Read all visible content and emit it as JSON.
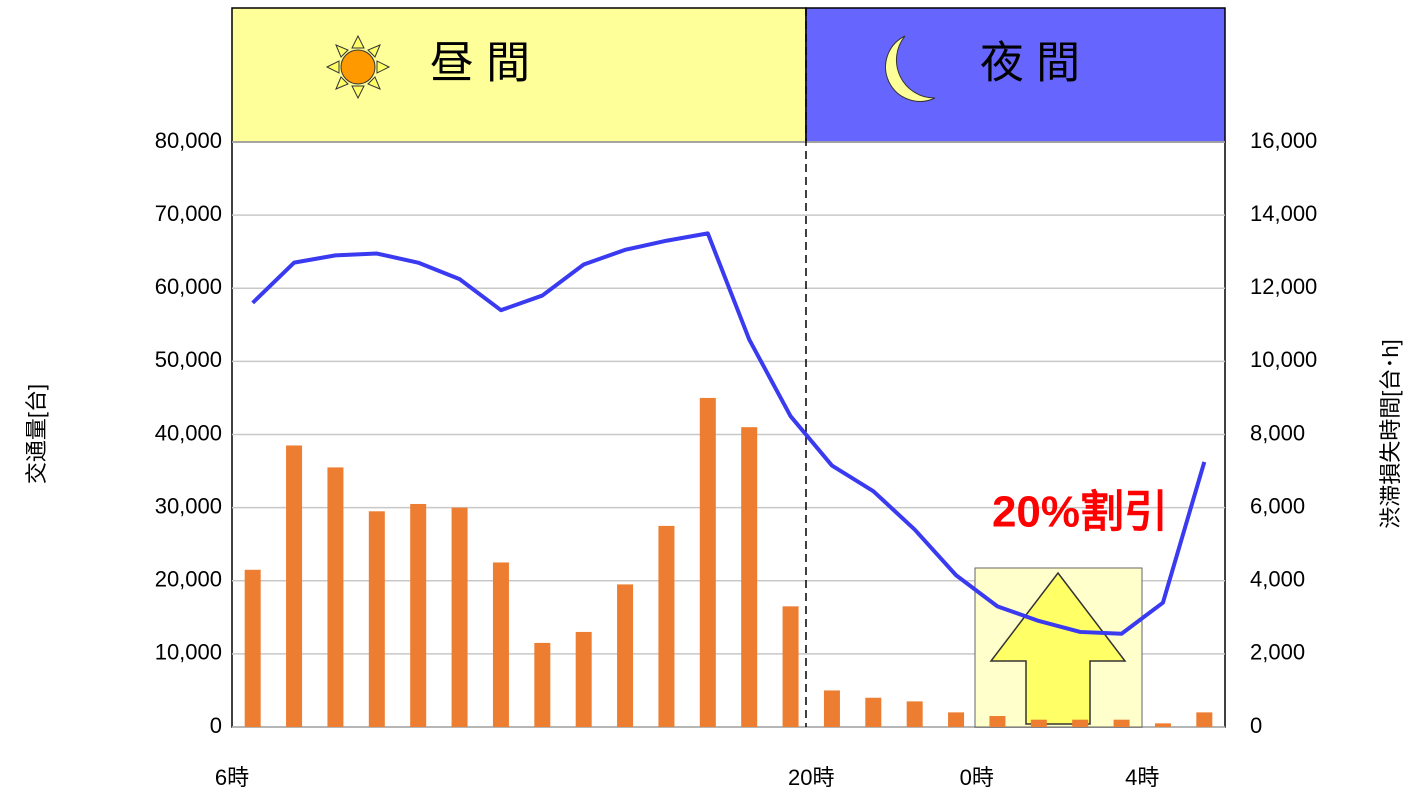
{
  "chart_data": {
    "type": "bar_line",
    "header": {
      "day": "昼 間",
      "night": "夜 間"
    },
    "annotation": "20%割引",
    "ylabel": "交通量[台]",
    "y2label": "渋滞損失時間[台･h]",
    "categories": [
      "6時",
      null,
      null,
      null,
      null,
      null,
      null,
      null,
      null,
      null,
      null,
      null,
      null,
      null,
      "20時",
      null,
      null,
      null,
      "0時",
      null,
      null,
      null,
      "4時",
      null
    ],
    "series": [
      {
        "name": "交通量",
        "color": "#ed7d31",
        "type": "bar",
        "axis": "y",
        "values": [
          21500,
          38500,
          35500,
          29500,
          30500,
          30000,
          22500,
          11500,
          13000,
          19500,
          27500,
          45000,
          41000,
          16500,
          5000,
          4000,
          3500,
          2000,
          1500,
          1000,
          1000,
          1000,
          500,
          2000
        ]
      },
      {
        "name": "渋滞損失時間",
        "color": "#3a3af0",
        "type": "line",
        "axis": "y2",
        "values": [
          11600,
          12700,
          12900,
          12950,
          12700,
          12250,
          11400,
          11800,
          12650,
          13050,
          13300,
          13500,
          10600,
          8500,
          7150,
          6450,
          5400,
          4150,
          3300,
          2900,
          2600,
          2550,
          3400,
          7250
        ]
      }
    ],
    "ylim": [
      0,
      80000
    ],
    "yticks": [
      0,
      {
        "value": 10000,
        "label": "10,000"
      },
      {
        "value": 20000,
        "label": "20,000"
      },
      {
        "value": 30000,
        "label": "30,000"
      },
      {
        "value": 40000,
        "label": "40,000"
      },
      {
        "value": 50000,
        "label": "50,000"
      },
      {
        "value": 60000,
        "label": "60,000"
      },
      {
        "value": 70000,
        "label": "70,000"
      },
      {
        "value": 80000,
        "label": "80,000"
      }
    ],
    "y2lim": [
      0,
      16000
    ],
    "y2ticks": [
      0,
      {
        "value": 2000,
        "label": "2,000"
      },
      {
        "value": 4000,
        "label": "4,000"
      },
      {
        "value": 6000,
        "label": "6,000"
      },
      {
        "value": 8000,
        "label": "8,000"
      },
      {
        "value": 10000,
        "label": "10,000"
      },
      {
        "value": 12000,
        "label": "12,000"
      },
      {
        "value": 14000,
        "label": "14,000"
      },
      {
        "value": 16000,
        "label": "16,000"
      }
    ],
    "grid": true
  }
}
